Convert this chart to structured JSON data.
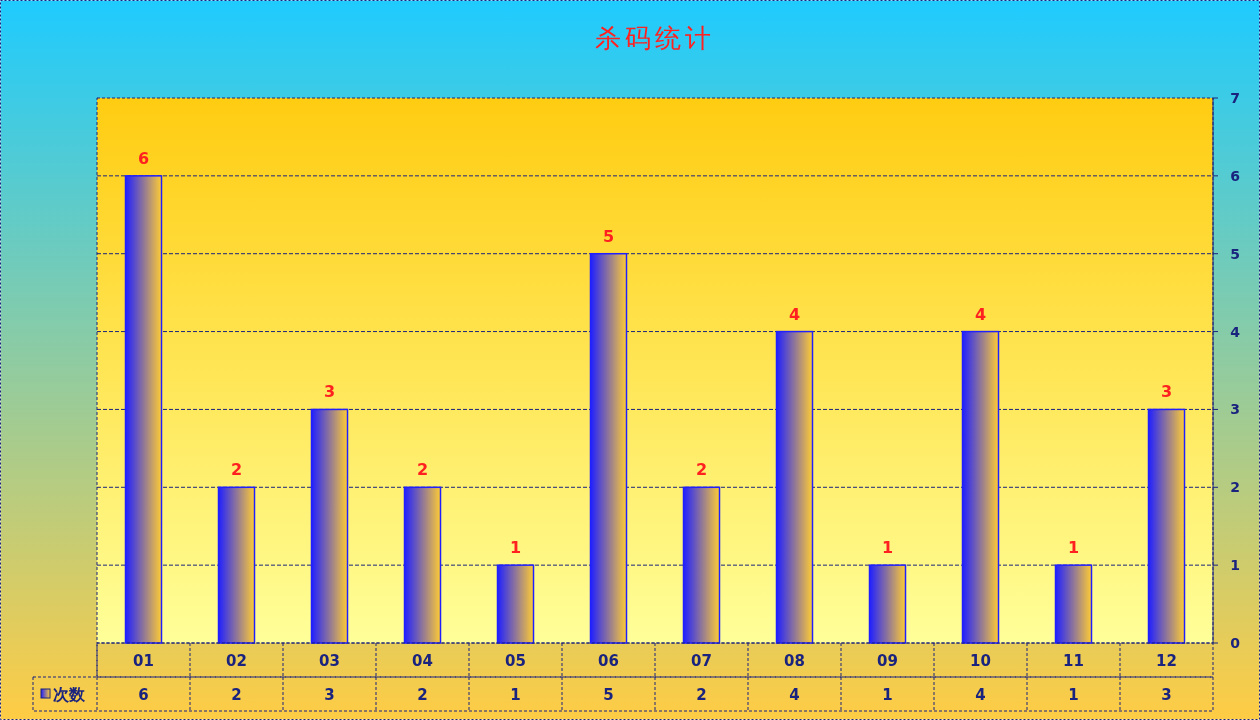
{
  "chart_data": {
    "type": "bar",
    "title": "杀码统计",
    "categories": [
      "01",
      "02",
      "03",
      "04",
      "05",
      "06",
      "07",
      "08",
      "09",
      "10",
      "11",
      "12"
    ],
    "series": [
      {
        "name": "次数",
        "color": "#2020ff",
        "values": [
          6,
          2,
          3,
          2,
          1,
          5,
          2,
          4,
          1,
          4,
          1,
          3
        ]
      }
    ],
    "annotations": [
      "6",
      "2",
      "3",
      "2",
      "1",
      "5",
      "2",
      "4",
      "1",
      "4",
      "1",
      "3"
    ],
    "ylim": [
      0,
      7
    ],
    "yticks": [
      0,
      1,
      2,
      3,
      4,
      5,
      6,
      7
    ],
    "grid": "y",
    "data_labels": true
  }
}
